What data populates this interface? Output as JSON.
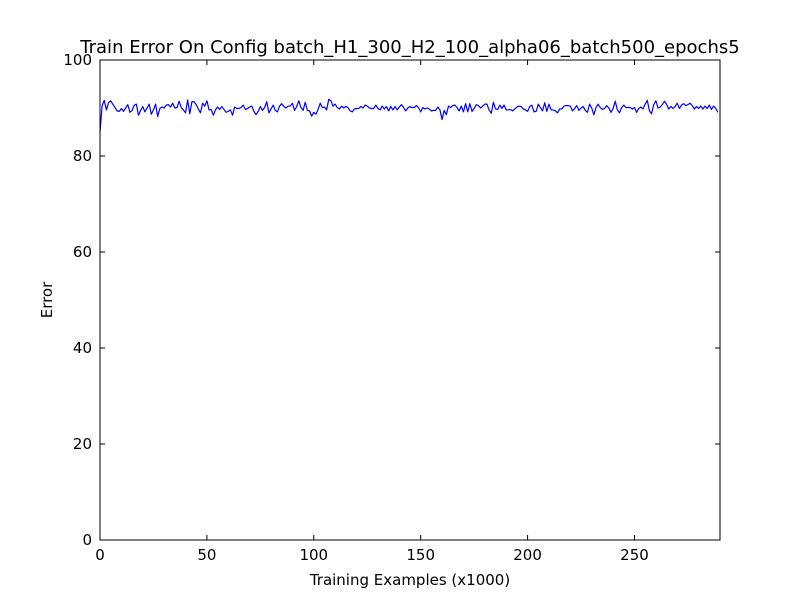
{
  "chart_data": {
    "type": "line",
    "title": "Train Error On Config batch_H1_300_H2_100_alpha06_batch500_epochs5",
    "xlabel": "Training Examples (x1000)",
    "ylabel": "Error",
    "xlim": [
      0,
      290
    ],
    "ylim": [
      0,
      100
    ],
    "xticks": [
      0,
      50,
      100,
      150,
      200,
      250
    ],
    "yticks": [
      0,
      20,
      40,
      60,
      80,
      100
    ],
    "grid": false,
    "line_color": "#0000ff",
    "series": [
      {
        "x": [
          0,
          1,
          2,
          3,
          4,
          5,
          6,
          7,
          8,
          9,
          10,
          11,
          12,
          13,
          14,
          15,
          16,
          17,
          18,
          19,
          20,
          21,
          22,
          23,
          24,
          25,
          26,
          27,
          28,
          29,
          30,
          31,
          32,
          33,
          34,
          35,
          36,
          37,
          38,
          39,
          40,
          41,
          42,
          43,
          44,
          45,
          46,
          47,
          48,
          49,
          50,
          51,
          52,
          53,
          54,
          55,
          56,
          57,
          58,
          59,
          60,
          61,
          62,
          63,
          64,
          65,
          66,
          67,
          68,
          69,
          70,
          71,
          72,
          73,
          74,
          75,
          76,
          77,
          78,
          79,
          80,
          81,
          82,
          83,
          84,
          85,
          86,
          87,
          88,
          89,
          90,
          91,
          92,
          93,
          94,
          95,
          96,
          97,
          98,
          99,
          100,
          101,
          102,
          103,
          104,
          105,
          106,
          107,
          108,
          109,
          110,
          111,
          112,
          113,
          114,
          115,
          116,
          117,
          118,
          119,
          120,
          121,
          122,
          123,
          124,
          125,
          126,
          127,
          128,
          129,
          130,
          131,
          132,
          133,
          134,
          135,
          136,
          137,
          138,
          139,
          140,
          141,
          142,
          143,
          144,
          145,
          146,
          147,
          148,
          149,
          150,
          151,
          152,
          153,
          154,
          155,
          156,
          157,
          158,
          159,
          160,
          161,
          162,
          163,
          164,
          165,
          166,
          167,
          168,
          169,
          170,
          171,
          172,
          173,
          174,
          175,
          176,
          177,
          178,
          179,
          180,
          181,
          182,
          183,
          184,
          185,
          186,
          187,
          188,
          189,
          190,
          191,
          192,
          193,
          194,
          195,
          196,
          197,
          198,
          199,
          200,
          201,
          202,
          203,
          204,
          205,
          206,
          207,
          208,
          209,
          210,
          211,
          212,
          213,
          214,
          215,
          216,
          217,
          218,
          219,
          220,
          221,
          222,
          223,
          224,
          225,
          226,
          227,
          228,
          229,
          230,
          231,
          232,
          233,
          234,
          235,
          236,
          237,
          238,
          239,
          240,
          241,
          242,
          243,
          244,
          245,
          246,
          247,
          248,
          249,
          250,
          251,
          252,
          253,
          254,
          255,
          256,
          257,
          258,
          259,
          260,
          261,
          262,
          263,
          264,
          265,
          266,
          267,
          268,
          269,
          270,
          271,
          272,
          273,
          274,
          275,
          276,
          277,
          278,
          279,
          280,
          281,
          282,
          283,
          284,
          285,
          286,
          287,
          288,
          289
        ],
        "y": [
          85.0,
          90.5,
          91.6,
          89.6,
          91.1,
          91.5,
          90.8,
          90.1,
          89.4,
          89.3,
          89.9,
          89.3,
          90.0,
          90.7,
          89.1,
          89.5,
          90.6,
          90.8,
          88.5,
          89.5,
          90.3,
          89.2,
          90.0,
          90.8,
          88.7,
          89.6,
          90.8,
          88.2,
          89.9,
          90.2,
          90.0,
          90.6,
          90.7,
          90.2,
          91.0,
          90.0,
          90.1,
          91.4,
          90.1,
          89.6,
          89.0,
          91.7,
          88.8,
          91.3,
          91.3,
          90.7,
          89.8,
          89.0,
          91.0,
          90.4,
          91.5,
          89.6,
          89.7,
          88.5,
          89.6,
          90.2,
          89.7,
          90.3,
          89.7,
          89.1,
          89.3,
          89.6,
          88.5,
          90.2,
          89.9,
          89.9,
          90.1,
          90.6,
          89.7,
          89.9,
          90.2,
          90.4,
          89.3,
          88.6,
          89.3,
          90.3,
          89.5,
          90.1,
          91.3,
          89.0,
          89.8,
          90.6,
          89.5,
          89.2,
          90.4,
          90.9,
          90.3,
          90.0,
          90.4,
          90.4,
          91.0,
          89.5,
          90.3,
          91.5,
          90.1,
          89.5,
          91.2,
          89.5,
          89.4,
          88.3,
          89.1,
          88.7,
          89.7,
          91.0,
          90.1,
          90.2,
          89.6,
          91.8,
          91.5,
          90.4,
          90.8,
          90.1,
          89.8,
          90.4,
          90.0,
          90.3,
          90.1,
          89.4,
          89.2,
          89.8,
          89.9,
          89.9,
          90.3,
          90.0,
          90.6,
          90.4,
          90.0,
          89.9,
          89.9,
          90.6,
          89.9,
          89.6,
          90.4,
          89.8,
          90.3,
          89.4,
          90.3,
          89.6,
          90.3,
          89.6,
          90.2,
          90.7,
          90.1,
          89.4,
          90.0,
          90.3,
          90.1,
          90.1,
          90.5,
          90.1,
          89.2,
          90.1,
          89.8,
          90.0,
          89.8,
          89.4,
          89.5,
          89.5,
          90.2,
          89.6,
          87.6,
          89.5,
          88.6,
          90.4,
          90.1,
          90.5,
          90.6,
          90.1,
          89.4,
          90.4,
          89.2,
          90.9,
          89.2,
          90.9,
          89.3,
          89.9,
          90.7,
          90.5,
          90.0,
          90.4,
          90.8,
          90.8,
          89.6,
          88.9,
          91.2,
          89.8,
          89.7,
          90.6,
          89.9,
          90.6,
          89.6,
          89.6,
          89.7,
          89.4,
          89.8,
          90.2,
          90.4,
          90.3,
          89.8,
          89.6,
          89.3,
          90.3,
          90.6,
          89.2,
          89.3,
          90.8,
          90.1,
          89.4,
          91.1,
          89.3,
          90.8,
          89.6,
          89.6,
          89.4,
          89.0,
          89.8,
          89.8,
          90.4,
          90.5,
          90.5,
          90.4,
          89.4,
          89.9,
          90.5,
          89.5,
          90.0,
          90.3,
          89.5,
          89.1,
          90.8,
          90.0,
          88.6,
          90.1,
          90.8,
          90.1,
          89.7,
          89.9,
          90.5,
          90.0,
          89.1,
          89.9,
          91.4,
          89.6,
          89.0,
          90.1,
          90.6,
          90.1,
          90.1,
          90.1,
          89.8,
          90.1,
          89.1,
          89.9,
          90.2,
          89.8,
          90.8,
          91.6,
          89.4,
          88.8,
          90.7,
          91.5,
          90.0,
          90.2,
          90.7,
          91.4,
          90.8,
          89.8,
          90.3,
          89.9,
          90.3,
          91.0,
          89.9,
          90.6,
          90.9,
          90.5,
          90.7,
          91.0,
          90.5,
          89.8,
          90.3,
          89.9,
          90.4,
          89.8,
          90.4,
          89.9,
          90.6,
          89.7,
          90.4,
          89.9,
          89.1
        ]
      }
    ]
  }
}
